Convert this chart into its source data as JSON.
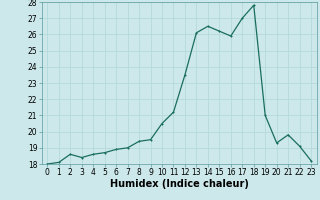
{
  "x": [
    0,
    1,
    2,
    3,
    4,
    5,
    6,
    7,
    8,
    9,
    10,
    11,
    12,
    13,
    14,
    15,
    16,
    17,
    18,
    19,
    20,
    21,
    22,
    23
  ],
  "y": [
    18.0,
    18.1,
    18.6,
    18.4,
    18.6,
    18.7,
    18.9,
    19.0,
    19.4,
    19.5,
    20.5,
    21.2,
    23.5,
    26.1,
    26.5,
    26.2,
    25.9,
    27.0,
    27.8,
    21.0,
    19.3,
    19.8,
    19.1,
    18.2
  ],
  "line_color": "#1a6e5e",
  "marker_color": "#1a6e5e",
  "bg_color": "#cce8ea",
  "grid_color": "#b0d8da",
  "xlabel": "Humidex (Indice chaleur)",
  "ylim": [
    18,
    28
  ],
  "xlim_min": -0.5,
  "xlim_max": 23.5,
  "yticks": [
    18,
    19,
    20,
    21,
    22,
    23,
    24,
    25,
    26,
    27,
    28
  ],
  "xticks": [
    0,
    1,
    2,
    3,
    4,
    5,
    6,
    7,
    8,
    9,
    10,
    11,
    12,
    13,
    14,
    15,
    16,
    17,
    18,
    19,
    20,
    21,
    22,
    23
  ],
  "xtick_labels": [
    "0",
    "1",
    "2",
    "3",
    "4",
    "5",
    "6",
    "7",
    "8",
    "9",
    "10",
    "11",
    "12",
    "13",
    "14",
    "15",
    "16",
    "17",
    "18",
    "19",
    "20",
    "21",
    "22",
    "23"
  ],
  "axis_fontsize": 6.5,
  "tick_fontsize": 5.5,
  "xlabel_fontsize": 7.0,
  "linewidth": 0.9,
  "markersize": 2.0
}
